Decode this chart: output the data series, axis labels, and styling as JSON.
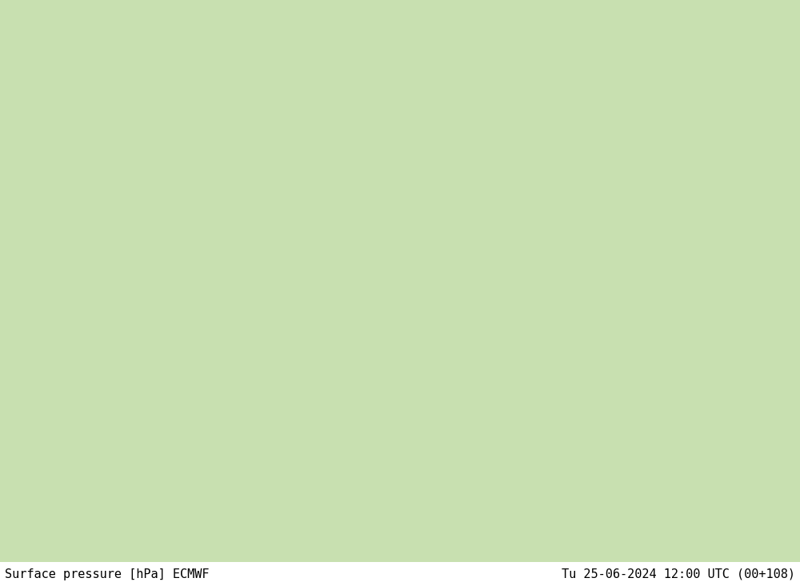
{
  "title_left": "Surface pressure [hPa] ECMWF",
  "title_right": "Tu 25-06-2024 12:00 UTC (00+108)",
  "bg_white": "#ffffff",
  "ocean_color": "#d8e8f0",
  "land_color_low": "#c8e0b0",
  "land_color_high": "#b0c898",
  "mountain_color": "#a0b880",
  "rocky_dark": "#909878",
  "pacific_coast_color": "#e8eef0",
  "figsize": [
    10.0,
    7.33
  ],
  "dpi": 100,
  "lon_min": -128,
  "lon_max": -60,
  "lat_min": 18,
  "lat_max": 58,
  "isobar_black_interval": 4,
  "isobar_min": 990,
  "isobar_max": 1026,
  "label_size": 7
}
